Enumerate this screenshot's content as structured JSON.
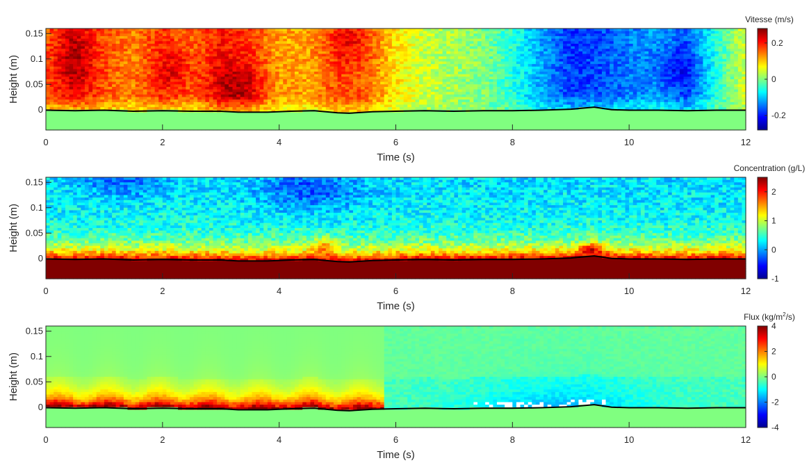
{
  "chart_data": [
    {
      "type": "heatmap",
      "panel_id": "velocity",
      "colorbar_label": "Vitesse (m/s)",
      "colormap": "jet",
      "clim": [
        -0.28,
        0.28
      ],
      "colorbar_ticks": [
        0.2,
        0,
        -0.2
      ],
      "colorbar_tick_labels": [
        "0.2",
        "0",
        "-0.2"
      ],
      "xlabel": "Time (s)",
      "ylabel": "Height (m)",
      "xlim": [
        0,
        12
      ],
      "ylim": [
        -0.04,
        0.16
      ],
      "xticks": [
        0,
        2,
        4,
        6,
        8,
        10,
        12
      ],
      "xtick_labels": [
        "0",
        "2",
        "4",
        "6",
        "8",
        "10",
        "12"
      ],
      "yticks": [
        0.15,
        0.1,
        0.05,
        0
      ],
      "ytick_labels": [
        "0.15",
        "0.1",
        "0.05",
        "0"
      ],
      "below_bed_value": 0.0,
      "field_description": "positive flow ~0.15-0.2 m/s for t<6 s with warm patches near t=0.5,2.2,3.3,5.2 s; negative ~-0.2 m/s for 8.5<t<11 s",
      "field_samples": {
        "t": [
          0,
          0.5,
          1,
          1.5,
          2,
          2.5,
          3,
          3.5,
          4,
          4.5,
          5,
          5.5,
          6,
          6.5,
          7,
          7.5,
          8,
          8.5,
          9,
          9.5,
          10,
          10.5,
          11,
          11.5,
          12
        ],
        "mean_velocity": [
          0.16,
          0.2,
          0.16,
          0.14,
          0.18,
          0.15,
          0.2,
          0.18,
          0.12,
          0.12,
          0.17,
          0.16,
          0.08,
          0.04,
          0.02,
          0.0,
          -0.05,
          -0.12,
          -0.18,
          -0.17,
          -0.14,
          -0.12,
          -0.16,
          -0.05,
          0.05
        ]
      }
    },
    {
      "type": "heatmap",
      "panel_id": "concentration",
      "colorbar_label": "Concentration (g/L)",
      "colormap": "jet",
      "clim": [
        -1,
        2.5
      ],
      "colorbar_ticks": [
        2,
        1,
        0,
        -1
      ],
      "colorbar_tick_labels": [
        "2",
        "1",
        "0",
        "-1"
      ],
      "xlabel": "Time (s)",
      "ylabel": "Height (m)",
      "xlim": [
        0,
        12
      ],
      "ylim": [
        -0.04,
        0.16
      ],
      "xticks": [
        0,
        2,
        4,
        6,
        8,
        10,
        12
      ],
      "xtick_labels": [
        "0",
        "2",
        "4",
        "6",
        "8",
        "10",
        "12"
      ],
      "yticks": [
        0.15,
        0.1,
        0.05,
        0
      ],
      "ytick_labels": [
        "0.15",
        "0.1",
        "0.05",
        "0"
      ],
      "below_bed_value": 2.5,
      "field_description": "saturated (>2.5 g/L) below bed; ~1.8-2 g/L in first 0.02 m, decaying to ~0-0.3 g/L near top"
    },
    {
      "type": "heatmap",
      "panel_id": "flux",
      "colorbar_label": "Flux (kg/m²/s)",
      "colorbar_label_parts": [
        "Flux (kg/m",
        "2",
        "/s)"
      ],
      "colormap": "jet",
      "clim": [
        -4,
        4
      ],
      "colorbar_ticks": [
        4,
        2,
        0,
        -2,
        -4
      ],
      "colorbar_tick_labels": [
        "4",
        "2",
        "0",
        "-2",
        "-4"
      ],
      "xlabel": "Time (s)",
      "ylabel": "Height (m)",
      "xlim": [
        0,
        12
      ],
      "ylim": [
        -0.04,
        0.16
      ],
      "xticks": [
        0,
        2,
        4,
        6,
        8,
        10,
        12
      ],
      "xtick_labels": [
        "0",
        "2",
        "4",
        "6",
        "8",
        "10",
        "12"
      ],
      "yticks": [
        0.15,
        0.1,
        0.05,
        0
      ],
      "ytick_labels": [
        "0.15",
        "0.1",
        "0.05",
        "0"
      ],
      "below_bed_value": 0.0,
      "field_description": "strong positive flux (~3-4) near bed for t<5.8 s, near 0 aloft; weak negative flux (~-1 to -2) for t>6 s; white (no data) patches near bed at 7.5-9.5 s"
    }
  ],
  "bed_line": {
    "color": "#000000",
    "t": [
      0,
      0.5,
      1,
      1.5,
      2,
      2.5,
      3,
      3.3,
      3.8,
      4.2,
      4.6,
      5.0,
      5.2,
      5.6,
      6,
      6.5,
      7,
      7.5,
      8,
      8.5,
      9,
      9.4,
      9.7,
      10,
      10.5,
      11,
      11.5,
      12
    ],
    "height": [
      -0.001,
      -0.002,
      -0.001,
      -0.003,
      -0.002,
      -0.003,
      -0.003,
      -0.005,
      -0.005,
      -0.003,
      -0.002,
      -0.006,
      -0.007,
      -0.004,
      -0.003,
      -0.002,
      -0.003,
      -0.002,
      -0.002,
      -0.001,
      0.001,
      0.005,
      0.0,
      -0.001,
      -0.001,
      -0.002,
      -0.001,
      -0.001
    ]
  },
  "colors": {
    "bed_fill_velocity": "#8cff73",
    "bed_fill_concentration": "#800000",
    "bed_fill_flux": "#8cff73",
    "no_data": "#ffffff"
  }
}
